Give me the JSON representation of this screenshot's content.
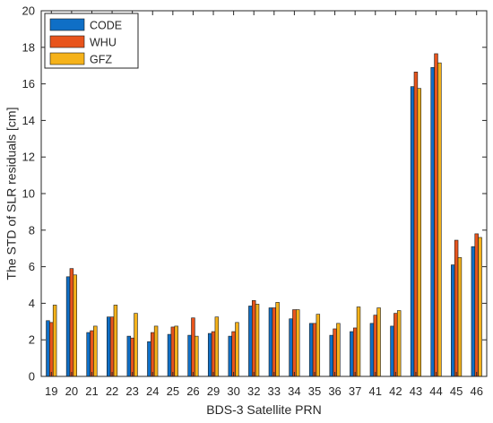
{
  "chart_data": {
    "type": "bar",
    "title": "",
    "xlabel": "BDS-3 Satellite PRN",
    "ylabel": "The STD of SLR residuals [cm]",
    "ylim": [
      0,
      20
    ],
    "yticks": [
      0,
      2,
      4,
      6,
      8,
      10,
      12,
      14,
      16,
      18,
      20
    ],
    "grid": false,
    "legend_position": "top-left",
    "categories": [
      "19",
      "20",
      "21",
      "22",
      "23",
      "24",
      "25",
      "26",
      "29",
      "30",
      "32",
      "33",
      "34",
      "35",
      "36",
      "37",
      "41",
      "42",
      "43",
      "44",
      "45",
      "46"
    ],
    "series": [
      {
        "name": "CODE",
        "color": "#0f6fc6",
        "values": [
          3.05,
          5.45,
          2.4,
          3.25,
          2.2,
          1.9,
          2.3,
          2.25,
          2.35,
          2.2,
          3.85,
          3.75,
          3.15,
          2.9,
          2.25,
          2.45,
          2.9,
          2.75,
          15.85,
          16.9,
          6.1,
          7.1
        ]
      },
      {
        "name": "WHU",
        "color": "#e8541c",
        "values": [
          2.95,
          5.9,
          2.5,
          3.25,
          2.1,
          2.4,
          2.7,
          3.2,
          2.45,
          2.45,
          4.15,
          3.75,
          3.65,
          2.9,
          2.6,
          2.65,
          3.35,
          3.45,
          16.65,
          17.65,
          7.45,
          7.8
        ]
      },
      {
        "name": "GFZ",
        "color": "#f5b21a",
        "values": [
          3.9,
          5.55,
          2.75,
          3.9,
          3.45,
          2.75,
          2.75,
          2.2,
          3.25,
          2.95,
          3.95,
          4.05,
          3.65,
          3.4,
          2.9,
          3.8,
          3.75,
          3.6,
          15.75,
          17.15,
          6.5,
          7.6
        ]
      }
    ]
  }
}
